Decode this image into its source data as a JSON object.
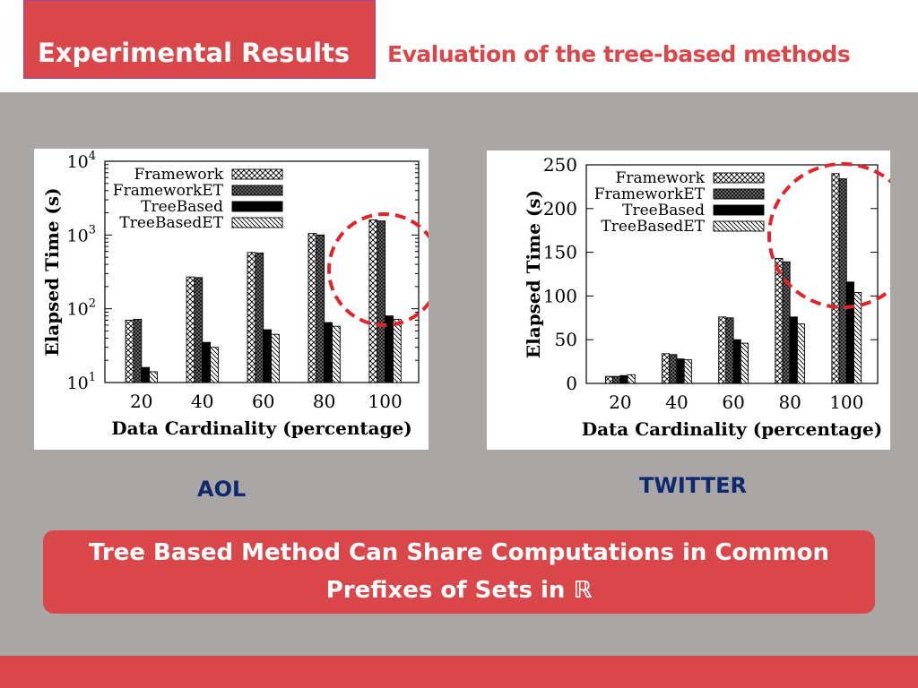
{
  "header": {
    "title": "Experimental Results",
    "subtitle": "Evaluation of the tree-based methods"
  },
  "captions": {
    "left": "AOL",
    "right": "TWITTER"
  },
  "callout": {
    "text": "Tree Based Method Can Share Computations in Common Prefixes of Sets in ℝ"
  },
  "colors": {
    "accent": "#d9474b",
    "panel": "#aaa6a6",
    "caption": "#0d2a6e",
    "highlight_circle": "#e0242a"
  },
  "chart_data": [
    {
      "type": "bar",
      "scale": "log",
      "xlabel": "Data Cardinality (percentage)",
      "ylabel": "Elapsed Time (s)",
      "categories": [
        "20",
        "40",
        "60",
        "80",
        "100"
      ],
      "ylim": [
        10,
        10000
      ],
      "yticks": [
        "10^1",
        "10^2",
        "10^3",
        "10^4"
      ],
      "legend_position": "top-left",
      "series": [
        {
          "name": "Framework",
          "values": [
            70,
            270,
            580,
            1050,
            1600
          ],
          "pattern": "cross"
        },
        {
          "name": "FrameworkET",
          "values": [
            72,
            265,
            570,
            1000,
            1550
          ],
          "pattern": "dense"
        },
        {
          "name": "TreeBased",
          "values": [
            16,
            35,
            52,
            65,
            80
          ],
          "pattern": "solid"
        },
        {
          "name": "TreeBasedET",
          "values": [
            14,
            30,
            45,
            58,
            72
          ],
          "pattern": "diag"
        }
      ],
      "highlight": "100"
    },
    {
      "type": "bar",
      "scale": "linear",
      "xlabel": "Data Cardinality (percentage)",
      "ylabel": "Elapsed Time (s)",
      "categories": [
        "20",
        "40",
        "60",
        "80",
        "100"
      ],
      "ylim": [
        0,
        250
      ],
      "yticks": [
        "0",
        "50",
        "100",
        "150",
        "200",
        "250"
      ],
      "legend_position": "top-left",
      "series": [
        {
          "name": "Framework",
          "values": [
            8,
            34,
            76,
            143,
            240
          ],
          "pattern": "cross"
        },
        {
          "name": "FrameworkET",
          "values": [
            8,
            33,
            75,
            139,
            234
          ],
          "pattern": "dense"
        },
        {
          "name": "TreeBased",
          "values": [
            9,
            28,
            50,
            76,
            116
          ],
          "pattern": "solid"
        },
        {
          "name": "TreeBasedET",
          "values": [
            10,
            27,
            46,
            68,
            104
          ],
          "pattern": "diag"
        }
      ],
      "highlight": "100"
    }
  ]
}
